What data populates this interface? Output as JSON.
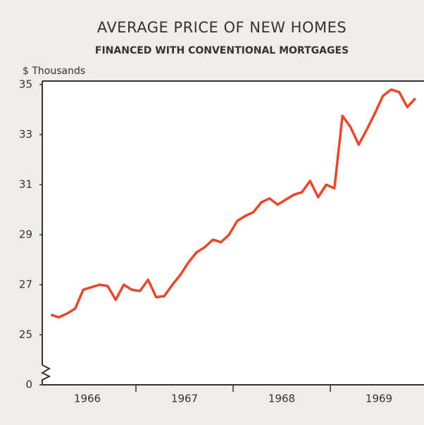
{
  "chart_data": {
    "type": "line",
    "title": "AVERAGE PRICE OF NEW HOMES",
    "subtitle": "FINANCED WITH CONVENTIONAL MORTGAGES",
    "y_label": "$ Thousands",
    "years": [
      "1966",
      "1967",
      "1968",
      "1969"
    ],
    "series": [
      {
        "color": "#e8472b",
        "values": [
          null,
          25.8,
          25.7,
          25.85,
          26.05,
          26.8,
          26.9,
          27.0,
          26.95,
          26.4,
          27.0,
          26.8,
          26.75,
          27.2,
          26.5,
          26.55,
          27.0,
          27.4,
          27.9,
          28.3,
          28.5,
          28.8,
          28.7,
          29.0,
          29.55,
          29.75,
          29.9,
          30.3,
          30.45,
          30.2,
          30.4,
          30.6,
          30.7,
          31.15,
          30.5,
          31.0,
          30.85,
          33.75,
          33.3,
          32.6,
          33.2,
          33.85,
          34.55,
          34.8,
          34.7,
          34.1,
          34.45
        ]
      }
    ],
    "ylim": [
      23,
      35
    ],
    "yticks": [
      0,
      25,
      27,
      29,
      31,
      33,
      35
    ],
    "axis_break": true
  }
}
